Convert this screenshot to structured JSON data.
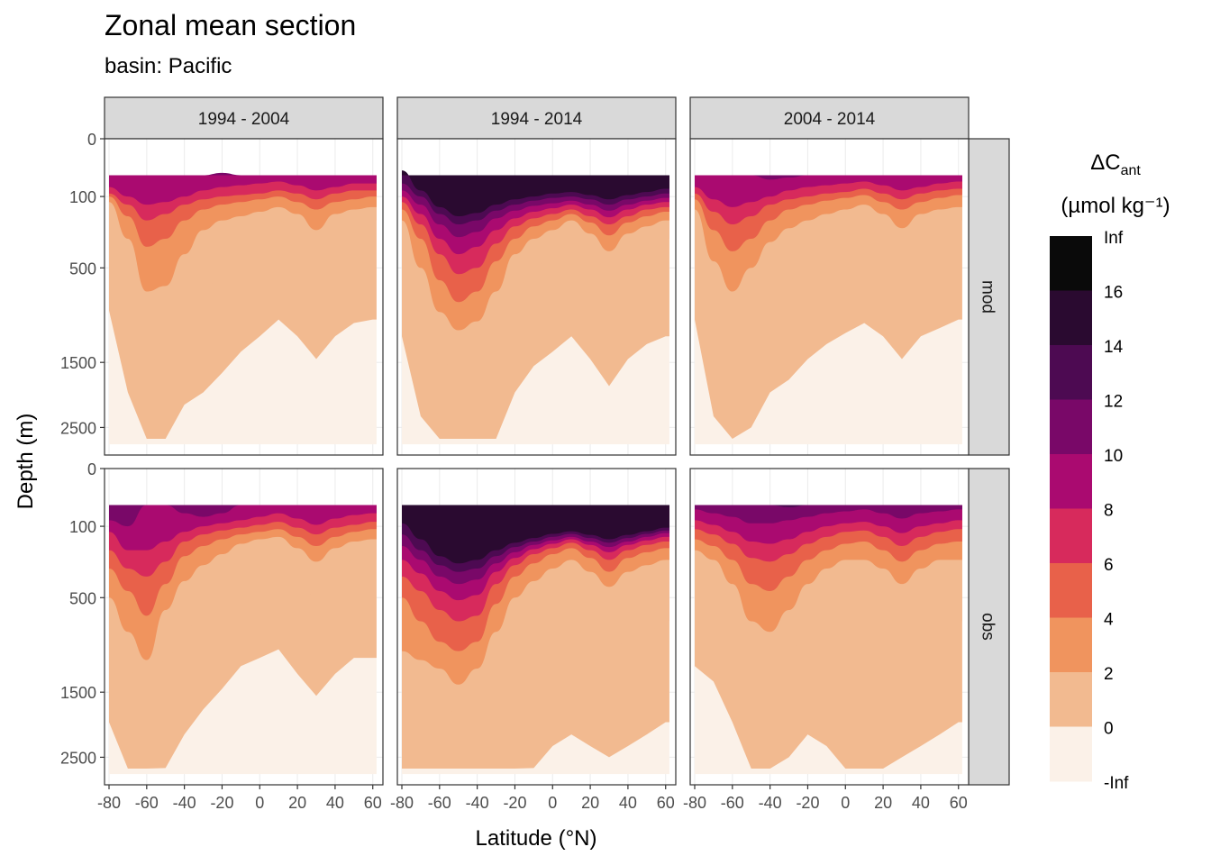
{
  "title": "Zonal mean section",
  "subtitle": "basin: Pacific",
  "chart_data": {
    "type": "heatmap",
    "facet_columns": [
      "1994 - 2004",
      "1994 - 2014",
      "2004 - 2014"
    ],
    "facet_rows": [
      "mod",
      "obs"
    ],
    "xlabel": "Latitude (°N)",
    "ylabel": "Depth (m)",
    "x_ticks": [
      -80,
      -60,
      -40,
      -20,
      0,
      20,
      40,
      60
    ],
    "x_tick_labels": [
      "-80",
      "-60",
      "-40",
      "-20",
      "0",
      "20",
      "40",
      "60"
    ],
    "y_ticks": [
      0,
      100,
      500,
      1500,
      2500
    ],
    "y_tick_labels": [
      "0",
      "100",
      "500",
      "1500",
      "2500"
    ],
    "y_reversed": true,
    "y_scale": "sqrt",
    "x_range": [
      -80,
      63
    ],
    "y_range": [
      0,
      3000
    ],
    "legend": {
      "title_main": "ΔC",
      "title_sub": "ant",
      "unit": "(µmol kg⁻¹)",
      "labels": [
        "Inf",
        "16",
        "14",
        "12",
        "10",
        "8",
        "6",
        "4",
        "2",
        "0",
        "-Inf"
      ],
      "colors": [
        "#0a0a0a",
        "#2a0a30",
        "#4d0a52",
        "#790868",
        "#aa0a70",
        "#d72a5c",
        "#e8614a",
        "#f0945e",
        "#f2ba90",
        "#fbf1e8"
      ],
      "placement": "right"
    },
    "panels": [
      {
        "period": "1994 - 2004",
        "source": "mod",
        "bottom_lat": -80,
        "top_lat": 62,
        "boundaries_depth_m": {
          "lat": [
            -80,
            -70,
            -60,
            -50,
            -40,
            -30,
            -20,
            -10,
            0,
            10,
            20,
            30,
            40,
            50,
            60
          ],
          "b2": [
            150,
            700,
            1600,
            1200,
            800,
            700,
            550,
            400,
            300,
            200,
            300,
            450,
            300,
            220,
            200
          ],
          "b4": [
            120,
            300,
            700,
            650,
            400,
            250,
            200,
            180,
            160,
            140,
            170,
            250,
            170,
            150,
            140
          ],
          "b6": [
            100,
            180,
            350,
            300,
            200,
            150,
            130,
            120,
            110,
            100,
            120,
            150,
            120,
            110,
            100
          ],
          "b8": [
            90,
            130,
            200,
            170,
            130,
            110,
            100,
            95,
            90,
            80,
            90,
            110,
            90,
            80,
            80
          ],
          "b10": [
            70,
            100,
            130,
            120,
            100,
            80,
            70,
            65,
            60,
            55,
            65,
            80,
            70,
            60,
            60
          ],
          "b12": [
            0,
            0,
            0,
            0,
            0,
            40,
            35,
            0,
            0,
            0,
            0,
            0,
            0,
            0,
            0
          ],
          "b14": [
            0,
            0,
            0,
            0,
            0,
            0,
            0,
            0,
            0,
            0,
            0,
            0,
            0,
            0,
            0
          ],
          "b16": [
            0,
            0,
            0,
            0,
            0,
            0,
            0,
            0,
            0,
            0,
            0,
            0,
            0,
            0,
            0
          ]
        }
      },
      {
        "period": "1994 - 2014",
        "source": "mod",
        "bottom_lat": -80,
        "top_lat": 62,
        "boundaries_depth_m": {
          "lat": [
            -80,
            -70,
            -60,
            -50,
            -40,
            -30,
            -20,
            -10,
            0,
            10,
            20,
            30,
            40,
            50,
            60
          ],
          "b2": [
            300,
            900,
            1400,
            1800,
            1700,
            1400,
            700,
            500,
            400,
            300,
            450,
            650,
            450,
            350,
            300
          ],
          "b4": [
            200,
            500,
            900,
            1100,
            1000,
            700,
            400,
            300,
            250,
            200,
            270,
            380,
            270,
            230,
            200
          ],
          "b6": [
            150,
            300,
            600,
            800,
            700,
            450,
            300,
            230,
            200,
            170,
            210,
            280,
            210,
            180,
            160
          ],
          "b8": [
            120,
            220,
            400,
            550,
            500,
            330,
            230,
            190,
            170,
            150,
            180,
            220,
            180,
            150,
            140
          ],
          "b10": [
            100,
            170,
            300,
            400,
            350,
            250,
            190,
            160,
            145,
            130,
            150,
            185,
            150,
            130,
            120
          ],
          "b12": [
            80,
            130,
            220,
            290,
            260,
            190,
            155,
            135,
            125,
            115,
            130,
            155,
            130,
            115,
            105
          ],
          "b14": [
            60,
            100,
            170,
            220,
            200,
            155,
            130,
            115,
            105,
            100,
            110,
            130,
            110,
            100,
            90
          ],
          "b16": [
            30,
            80,
            140,
            180,
            165,
            130,
            110,
            100,
            90,
            85,
            95,
            110,
            95,
            85,
            75
          ]
        }
      },
      {
        "period": "2004 - 2014",
        "source": "mod",
        "bottom_lat": -80,
        "top_lat": 62,
        "boundaries_depth_m": {
          "lat": [
            -80,
            -70,
            -60,
            -50,
            -40,
            -30,
            -20,
            -10,
            0,
            10,
            20,
            30,
            40,
            50,
            60
          ],
          "b2": [
            200,
            900,
            1300,
            1000,
            700,
            600,
            450,
            350,
            280,
            220,
            300,
            450,
            300,
            250,
            200
          ],
          "b4": [
            150,
            450,
            700,
            500,
            320,
            240,
            200,
            170,
            150,
            130,
            170,
            240,
            170,
            150,
            140
          ],
          "b6": [
            110,
            250,
            380,
            300,
            200,
            150,
            130,
            115,
            105,
            95,
            120,
            150,
            120,
            105,
            95
          ],
          "b8": [
            90,
            160,
            220,
            180,
            130,
            110,
            100,
            90,
            85,
            75,
            90,
            110,
            90,
            80,
            75
          ],
          "b10": [
            70,
            110,
            140,
            120,
            100,
            80,
            70,
            65,
            60,
            55,
            65,
            80,
            70,
            60,
            55
          ],
          "b12": [
            0,
            0,
            0,
            40,
            50,
            45,
            40,
            0,
            0,
            0,
            0,
            0,
            0,
            0,
            0
          ],
          "b14": [
            0,
            0,
            0,
            0,
            0,
            0,
            0,
            0,
            0,
            0,
            0,
            0,
            0,
            0,
            0
          ],
          "b16": [
            0,
            0,
            0,
            0,
            0,
            0,
            0,
            0,
            0,
            0,
            0,
            0,
            0,
            0,
            0
          ]
        }
      },
      {
        "period": "1994 - 2004",
        "source": "obs",
        "bottom_lat": -80,
        "top_lat": 62,
        "boundaries_depth_m": {
          "lat": [
            -80,
            -70,
            -60,
            -50,
            -40,
            -30,
            -20,
            -10,
            0,
            10,
            20,
            30,
            40,
            50,
            60
          ],
          "b2": [
            700,
            1200,
            1600,
            1100,
            800,
            600,
            450,
            300,
            250,
            200,
            350,
            500,
            350,
            250,
            250
          ],
          "b4": [
            500,
            800,
            1100,
            600,
            380,
            280,
            220,
            170,
            150,
            140,
            190,
            260,
            190,
            160,
            150
          ],
          "b6": [
            300,
            450,
            650,
            400,
            230,
            180,
            150,
            130,
            120,
            110,
            140,
            180,
            140,
            120,
            110
          ],
          "b8": [
            200,
            300,
            350,
            260,
            160,
            130,
            115,
            105,
            95,
            85,
            105,
            130,
            105,
            95,
            85
          ],
          "b10": [
            120,
            200,
            200,
            160,
            120,
            100,
            90,
            80,
            70,
            60,
            75,
            95,
            75,
            65,
            60
          ],
          "b12": [
            80,
            100,
            0,
            0,
            60,
            70,
            60,
            40,
            0,
            0,
            0,
            40,
            0,
            0,
            0
          ],
          "b14": [
            0,
            0,
            0,
            0,
            0,
            0,
            0,
            0,
            0,
            0,
            0,
            0,
            0,
            0,
            0
          ],
          "b16": [
            0,
            0,
            0,
            0,
            0,
            0,
            0,
            0,
            0,
            0,
            0,
            0,
            0,
            0,
            0
          ]
        }
      },
      {
        "period": "1994 - 2014",
        "source": "obs",
        "bottom_lat": -80,
        "top_lat": 62,
        "boundaries_depth_m": {
          "lat": [
            -80,
            -70,
            -60,
            -50,
            -40,
            -30,
            -20,
            -10,
            0,
            10,
            20,
            30,
            40,
            50,
            60
          ],
          "b2": [
            2500,
            2500,
            2000,
            1700,
            1500,
            1400,
            1300,
            1100,
            900,
            800,
            900,
            1000,
            900,
            800,
            700
          ],
          "b4": [
            1000,
            1100,
            1200,
            1400,
            1200,
            800,
            500,
            380,
            300,
            250,
            320,
            420,
            320,
            280,
            250
          ],
          "b6": [
            500,
            700,
            900,
            1000,
            900,
            550,
            350,
            270,
            220,
            190,
            240,
            320,
            240,
            210,
            190
          ],
          "b8": [
            350,
            450,
            600,
            700,
            650,
            400,
            280,
            220,
            190,
            165,
            200,
            250,
            200,
            175,
            160
          ],
          "b10": [
            250,
            330,
            450,
            520,
            480,
            320,
            240,
            195,
            170,
            150,
            175,
            210,
            175,
            155,
            140
          ],
          "b12": [
            180,
            250,
            350,
            400,
            370,
            270,
            210,
            175,
            155,
            140,
            160,
            185,
            160,
            140,
            125
          ],
          "b14": [
            130,
            200,
            280,
            320,
            300,
            230,
            185,
            160,
            140,
            128,
            145,
            165,
            145,
            128,
            115
          ],
          "b16": [
            90,
            150,
            230,
            270,
            250,
            200,
            165,
            145,
            128,
            118,
            132,
            150,
            132,
            118,
            105
          ]
        }
      },
      {
        "period": "2004 - 2014",
        "source": "obs",
        "bottom_lat": -80,
        "top_lat": 62,
        "boundaries_depth_m": {
          "lat": [
            -80,
            -70,
            -60,
            -50,
            -40,
            -30,
            -20,
            -10,
            0,
            10,
            20,
            30,
            40,
            50,
            60
          ],
          "b2": [
            300,
            400,
            700,
            1200,
            1200,
            1000,
            800,
            900,
            1500,
            1700,
            1200,
            1000,
            900,
            800,
            700
          ],
          "b4": [
            200,
            250,
            400,
            700,
            800,
            600,
            400,
            300,
            250,
            250,
            300,
            400,
            300,
            250,
            250
          ],
          "b6": [
            150,
            180,
            250,
            400,
            450,
            350,
            250,
            200,
            170,
            160,
            200,
            260,
            200,
            170,
            160
          ],
          "b8": [
            110,
            130,
            170,
            240,
            260,
            220,
            170,
            140,
            120,
            115,
            140,
            180,
            140,
            120,
            110
          ],
          "b10": [
            80,
            95,
            120,
            160,
            170,
            150,
            120,
            100,
            90,
            85,
            100,
            125,
            100,
            90,
            80
          ],
          "b12": [
            50,
            60,
            70,
            90,
            90,
            80,
            70,
            60,
            55,
            50,
            60,
            75,
            60,
            55,
            50
          ],
          "b14": [
            0,
            0,
            0,
            0,
            40,
            45,
            40,
            0,
            0,
            0,
            0,
            0,
            0,
            0,
            0
          ],
          "b16": [
            0,
            0,
            0,
            0,
            0,
            0,
            0,
            0,
            0,
            0,
            0,
            0,
            0,
            0,
            0
          ]
        }
      }
    ]
  }
}
